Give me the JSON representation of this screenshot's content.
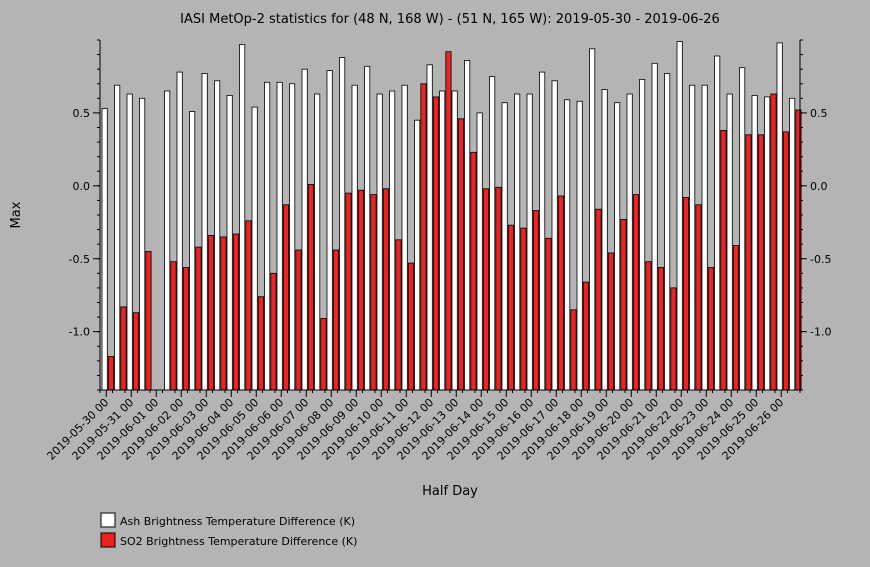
{
  "chart_data": {
    "type": "bar",
    "title": "IASI MetOp-2 statistics for (48 N, 168 W) - (51 N, 165 W): 2019-05-30 - 2019-06-26",
    "xlabel": "Half Day",
    "ylabel": "Max",
    "ylim": [
      -1.4,
      1.0
    ],
    "yticks": [
      0.5,
      0.0,
      -0.5,
      -1.0
    ],
    "ytick_labels": [
      "0.5",
      "0.0",
      "-0.5",
      "-1.0"
    ],
    "grid": false,
    "legend_position": "bottom-left",
    "x_tick_labels": [
      "2019-05-30 00",
      "2019-05-31 00",
      "2019-06-01 00",
      "2019-06-02 00",
      "2019-06-03 00",
      "2019-06-04 00",
      "2019-06-05 00",
      "2019-06-06 00",
      "2019-06-07 00",
      "2019-06-08 00",
      "2019-06-09 00",
      "2019-06-10 00",
      "2019-06-11 00",
      "2019-06-12 00",
      "2019-06-13 00",
      "2019-06-14 00",
      "2019-06-15 00",
      "2019-06-16 00",
      "2019-06-17 00",
      "2019-06-18 00",
      "2019-06-19 00",
      "2019-06-20 00",
      "2019-06-21 00",
      "2019-06-22 00",
      "2019-06-23 00",
      "2019-06-24 00",
      "2019-06-25 00",
      "2019-06-26 00"
    ],
    "series": [
      {
        "name": "Ash Brightness Temperature Difference (K)",
        "color": "#ffffff",
        "values": [
          0.53,
          0.69,
          0.63,
          0.6,
          null,
          0.65,
          0.78,
          0.51,
          0.77,
          0.72,
          0.62,
          0.97,
          0.54,
          0.71,
          0.71,
          0.7,
          0.8,
          0.63,
          0.79,
          0.88,
          0.69,
          0.82,
          0.63,
          0.65,
          0.69,
          0.45,
          0.83,
          0.65,
          0.65,
          0.86,
          0.5,
          0.75,
          0.57,
          0.63,
          0.63,
          0.78,
          0.72,
          0.59,
          0.58,
          0.94,
          0.66,
          0.57,
          0.63,
          0.73,
          0.84,
          0.77,
          0.99,
          0.69,
          0.69,
          0.89,
          0.63,
          0.81,
          0.62,
          0.61,
          0.98,
          0.6
        ]
      },
      {
        "name": "SO2 Brightness Temperature Difference (K)",
        "color": "#ee2222",
        "values": [
          -1.17,
          -0.83,
          -0.87,
          -0.45,
          null,
          -0.52,
          -0.56,
          -0.42,
          -0.34,
          -0.35,
          -0.33,
          -0.24,
          -0.76,
          -0.6,
          -0.13,
          -0.44,
          0.01,
          -0.91,
          -0.44,
          -0.05,
          -0.03,
          -0.06,
          -0.02,
          -0.37,
          -0.53,
          0.7,
          0.61,
          0.92,
          0.46,
          0.23,
          -0.02,
          -0.01,
          -0.27,
          -0.29,
          -0.17,
          -0.36,
          -0.07,
          -0.85,
          -0.66,
          -0.16,
          -0.46,
          -0.23,
          -0.06,
          -0.52,
          -0.56,
          -0.7,
          -0.08,
          -0.13,
          -0.56,
          0.38,
          -0.41,
          0.35,
          0.35,
          0.63,
          0.37,
          0.52
        ]
      }
    ]
  }
}
